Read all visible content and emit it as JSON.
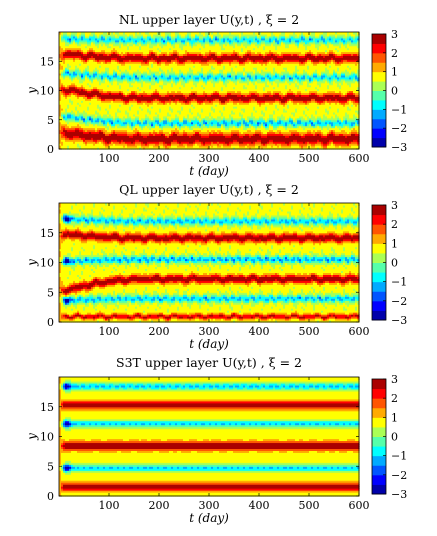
{
  "chart_data": [
    {
      "type": "heatmap",
      "title": "NL upper layer  U(y,t)  ,  ξ = 2",
      "xlabel": "t (day)",
      "ylabel": "y",
      "xlim": [
        0,
        600
      ],
      "ylim": [
        0,
        20
      ],
      "xticks": [
        "100",
        "200",
        "300",
        "400",
        "500",
        "600"
      ],
      "yticks": [
        "0",
        "5",
        "10",
        "15"
      ],
      "colorbar": {
        "min": -3,
        "max": 3,
        "ticks": [
          "3",
          "2",
          "1",
          "0",
          "−1",
          "−2",
          "−3"
        ]
      },
      "jets": [
        {
          "y_start": 2.8,
          "y_end": 1.8,
          "width": 1.0,
          "amplitude": 3.0
        },
        {
          "y_start": 10.2,
          "y_end": 8.8,
          "width": 0.75,
          "amplitude": 3.0
        },
        {
          "y_start": 16.3,
          "y_end": 15.6,
          "width": 0.75,
          "amplitude": 3.0
        }
      ],
      "troughs": [
        {
          "y_start": 5.6,
          "y_end": 4.5,
          "amplitude": -1.1
        },
        {
          "y_start": 13.0,
          "y_end": 12.3,
          "amplitude": -1.0
        },
        {
          "y_start": 18.9,
          "y_end": 18.7,
          "amplitude": -1.0
        }
      ]
    },
    {
      "type": "heatmap",
      "title": "QL upper layer  U(y,t)  ,  ξ = 2",
      "xlabel": "t (day)",
      "ylabel": "y",
      "xlim": [
        0,
        600
      ],
      "ylim": [
        0,
        20
      ],
      "xticks": [
        "100",
        "200",
        "300",
        "400",
        "500",
        "600"
      ],
      "yticks": [
        "0",
        "5",
        "10",
        "15"
      ],
      "colorbar": {
        "min": -3,
        "max": 3,
        "ticks": [
          "3",
          "2",
          "1",
          "0",
          "−1",
          "−2",
          "−3"
        ]
      },
      "jets": [
        {
          "y_start": 1.0,
          "y_end": 1.0,
          "width": 0.45,
          "amplitude": 2.6
        },
        {
          "y_start": 5.5,
          "y_end": 7.3,
          "width": 0.7,
          "amplitude": 3.0
        },
        {
          "y_start": 14.8,
          "y_end": 14.2,
          "width": 0.7,
          "amplitude": 3.0
        }
      ],
      "troughs": [
        {
          "y_start": 3.7,
          "y_end": 4.0,
          "amplitude": -1.1
        },
        {
          "y_start": 10.3,
          "y_end": 10.6,
          "amplitude": -1.2
        },
        {
          "y_start": 17.4,
          "y_end": 17.0,
          "amplitude": -1.1
        }
      ]
    },
    {
      "type": "heatmap",
      "title": "S3T upper layer  U(y,t)  ,  ξ = 2",
      "xlabel": "t (day)",
      "ylabel": "y",
      "xlim": [
        0,
        600
      ],
      "ylim": [
        0,
        20
      ],
      "xticks": [
        "100",
        "200",
        "300",
        "400",
        "500",
        "600"
      ],
      "yticks": [
        "0",
        "5",
        "10",
        "15"
      ],
      "colorbar": {
        "min": -3,
        "max": 3,
        "ticks": [
          "3",
          "2",
          "1",
          "0",
          "−1",
          "−2",
          "−3"
        ]
      },
      "jets": [
        {
          "y_start": 1.6,
          "y_end": 1.6,
          "width": 0.7,
          "amplitude": 3.0
        },
        {
          "y_start": 8.5,
          "y_end": 8.5,
          "width": 0.75,
          "amplitude": 3.0
        },
        {
          "y_start": 15.4,
          "y_end": 15.4,
          "width": 0.7,
          "amplitude": 3.0
        }
      ],
      "troughs": [
        {
          "y_start": 4.8,
          "y_end": 4.8,
          "amplitude": -1.0
        },
        {
          "y_start": 12.2,
          "y_end": 12.2,
          "amplitude": -1.0
        },
        {
          "y_start": 18.5,
          "y_end": 18.5,
          "amplitude": -1.0
        }
      ]
    }
  ]
}
